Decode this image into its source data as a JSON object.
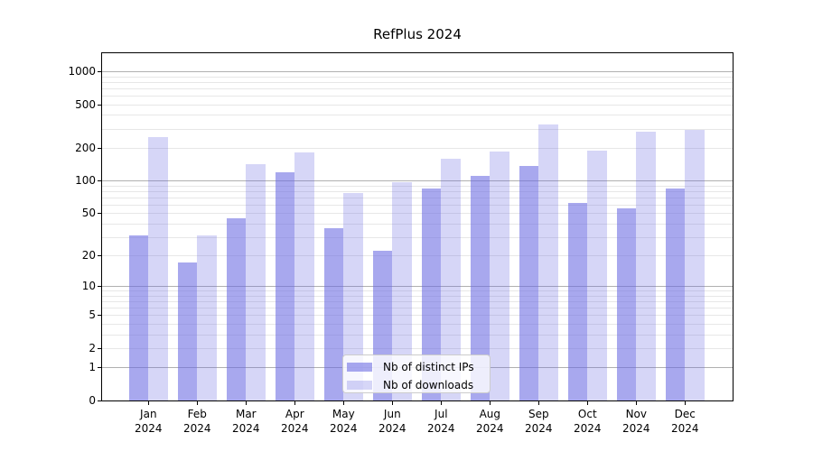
{
  "chart_data": {
    "type": "bar",
    "title": "RefPlus 2024",
    "xlabel": "",
    "ylabel": "",
    "yscale": "symlog (position proportional to ln(1+value))",
    "ylim": [
      0,
      1460
    ],
    "grid": true,
    "legend_position": "lower center",
    "categories": [
      "Jan",
      "Feb",
      "Mar",
      "Apr",
      "May",
      "Jun",
      "Jul",
      "Aug",
      "Sep",
      "Oct",
      "Nov",
      "Dec"
    ],
    "year_label": "2024",
    "yticks": [
      0,
      1,
      2,
      5,
      10,
      20,
      50,
      100,
      200,
      500,
      1000
    ],
    "major_gridlines": [
      1,
      10,
      100,
      1000
    ],
    "minor_gridlines": [
      2,
      3,
      4,
      5,
      6,
      7,
      8,
      9,
      20,
      30,
      40,
      50,
      60,
      70,
      80,
      90,
      200,
      300,
      400,
      500,
      600,
      700,
      800,
      900
    ],
    "series": [
      {
        "key": "ips",
        "name": "Nb of distinct IPs",
        "fill": "rgba(105,105,226,0.58)",
        "values": [
          31,
          17,
          45,
          119,
          36,
          22,
          85,
          110,
          137,
          62,
          55,
          85
        ]
      },
      {
        "key": "downloads",
        "name": "Nb of downloads",
        "fill": "rgba(105,105,226,0.27)",
        "values": [
          250,
          31,
          142,
          181,
          77,
          97,
          160,
          185,
          330,
          188,
          280,
          292
        ]
      }
    ]
  },
  "colors": {
    "background": "#ffffff",
    "spine": "#000000",
    "major_grid": "#b0b0b0",
    "minor_grid": "#e7e7e7",
    "text": "#000000",
    "legend_border": "#cccccc",
    "legend_background": "rgba(255,255,255,0.8)"
  }
}
